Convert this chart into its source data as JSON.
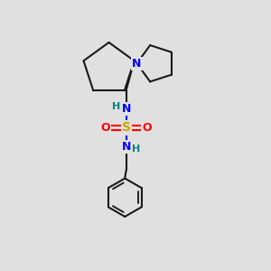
{
  "background_color": "#e0e0e0",
  "bond_color": "#1a1a1a",
  "N_color": "#0000ff",
  "O_color": "#ff0000",
  "S_color": "#ccaa00",
  "H_color": "#008080",
  "linewidth": 1.5,
  "figsize": [
    3.0,
    3.0
  ],
  "dpi": 100,
  "xlim": [
    0,
    10
  ],
  "ylim": [
    0,
    10
  ]
}
